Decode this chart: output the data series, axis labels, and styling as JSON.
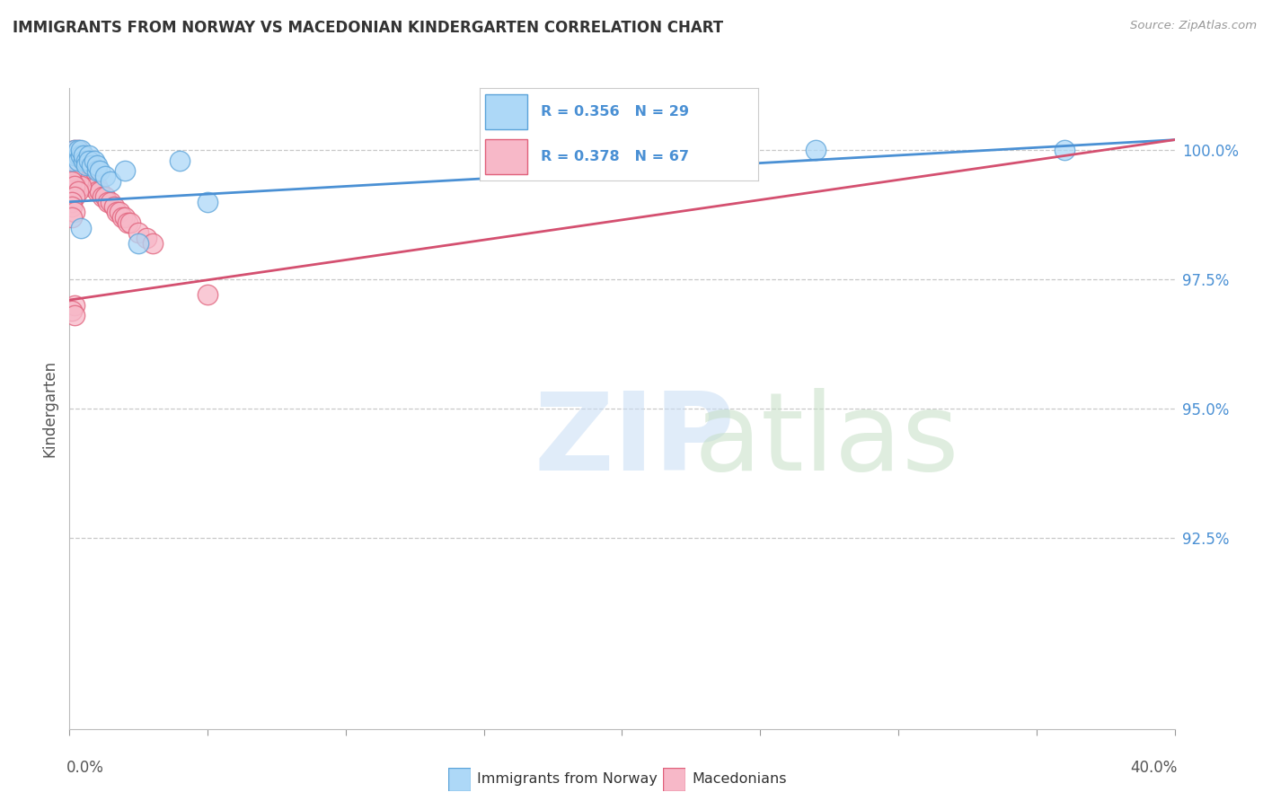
{
  "title": "IMMIGRANTS FROM NORWAY VS MACEDONIAN KINDERGARTEN CORRELATION CHART",
  "source": "Source: ZipAtlas.com",
  "ylabel": "Kindergarten",
  "ytick_labels": [
    "100.0%",
    "97.5%",
    "95.0%",
    "92.5%"
  ],
  "ytick_values": [
    1.0,
    0.975,
    0.95,
    0.925
  ],
  "xlim": [
    0.0,
    0.4
  ],
  "ylim": [
    0.888,
    1.012
  ],
  "norway_color": "#add8f7",
  "norway_edge_color": "#5ba3d9",
  "macedonian_color": "#f7b8c8",
  "macedonian_edge_color": "#e0607a",
  "norway_line_color": "#4a90d4",
  "macedonian_line_color": "#d45070",
  "legend_r_norway": "R = 0.356",
  "legend_n_norway": "N = 29",
  "legend_r_macedonian": "R = 0.378",
  "legend_n_macedonian": "N = 67",
  "norway_x": [
    0.001,
    0.002,
    0.002,
    0.003,
    0.003,
    0.003,
    0.004,
    0.004,
    0.005,
    0.005,
    0.006,
    0.006,
    0.007,
    0.007,
    0.008,
    0.009,
    0.01,
    0.01,
    0.011,
    0.013,
    0.015,
    0.02,
    0.025,
    0.04,
    0.05,
    0.16,
    0.27,
    0.36,
    0.004
  ],
  "norway_y": [
    0.998,
    0.999,
    1.0,
    0.999,
    1.0,
    0.998,
    0.999,
    1.0,
    0.998,
    0.999,
    0.998,
    0.997,
    0.999,
    0.998,
    0.997,
    0.998,
    0.996,
    0.997,
    0.996,
    0.995,
    0.994,
    0.996,
    0.982,
    0.998,
    0.99,
    1.0,
    1.0,
    1.0,
    0.985
  ],
  "macedonian_x": [
    0.001,
    0.001,
    0.002,
    0.002,
    0.002,
    0.003,
    0.003,
    0.003,
    0.003,
    0.004,
    0.004,
    0.004,
    0.005,
    0.005,
    0.005,
    0.006,
    0.006,
    0.006,
    0.007,
    0.007,
    0.007,
    0.008,
    0.008,
    0.009,
    0.009,
    0.01,
    0.01,
    0.011,
    0.012,
    0.013,
    0.014,
    0.015,
    0.016,
    0.017,
    0.018,
    0.019,
    0.02,
    0.021,
    0.022,
    0.025,
    0.028,
    0.03,
    0.002,
    0.003,
    0.004,
    0.005,
    0.006,
    0.007,
    0.008,
    0.001,
    0.002,
    0.002,
    0.003,
    0.004,
    0.001,
    0.001,
    0.002,
    0.003,
    0.002,
    0.001,
    0.001,
    0.002,
    0.001,
    0.05,
    0.002,
    0.001,
    0.002
  ],
  "macedonian_y": [
    0.999,
    0.998,
    0.999,
    0.998,
    0.997,
    0.999,
    0.998,
    0.997,
    0.996,
    0.998,
    0.997,
    0.996,
    0.997,
    0.996,
    0.995,
    0.997,
    0.996,
    0.994,
    0.996,
    0.995,
    0.993,
    0.995,
    0.994,
    0.994,
    0.993,
    0.993,
    0.992,
    0.992,
    0.991,
    0.991,
    0.99,
    0.99,
    0.989,
    0.988,
    0.988,
    0.987,
    0.987,
    0.986,
    0.986,
    0.984,
    0.983,
    0.982,
    1.0,
    1.0,
    0.999,
    0.999,
    0.998,
    0.998,
    0.997,
    0.997,
    0.996,
    0.995,
    0.994,
    0.993,
    0.996,
    0.994,
    0.993,
    0.992,
    0.991,
    0.99,
    0.989,
    0.988,
    0.987,
    0.972,
    0.97,
    0.969,
    0.968
  ],
  "norway_trend_x": [
    0.0,
    0.4
  ],
  "norway_trend_y": [
    0.99,
    1.002
  ],
  "macedonian_trend_x": [
    0.0,
    0.4
  ],
  "macedonian_trend_y": [
    0.971,
    1.002
  ]
}
